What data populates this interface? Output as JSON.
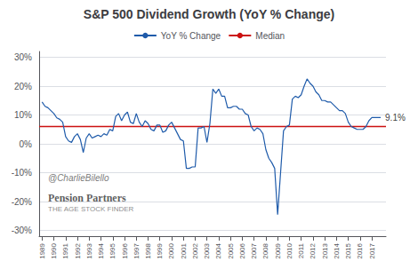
{
  "chart_data": {
    "type": "line",
    "title": "S&P 500 Dividend Growth (YoY % Change)",
    "x": [
      1989.0,
      1989.25,
      1989.5,
      1989.75,
      1990.0,
      1990.25,
      1990.5,
      1990.75,
      1991.0,
      1991.25,
      1991.5,
      1991.75,
      1992.0,
      1992.25,
      1992.5,
      1992.75,
      1993.0,
      1993.25,
      1993.5,
      1993.75,
      1994.0,
      1994.25,
      1994.5,
      1994.75,
      1995.0,
      1995.25,
      1995.5,
      1995.75,
      1996.0,
      1996.25,
      1996.5,
      1996.75,
      1997.0,
      1997.25,
      1997.5,
      1997.75,
      1998.0,
      1998.25,
      1998.5,
      1998.75,
      1999.0,
      1999.25,
      1999.5,
      1999.75,
      2000.0,
      2000.25,
      2000.5,
      2000.75,
      2001.0,
      2001.25,
      2001.5,
      2001.75,
      2002.0,
      2002.25,
      2002.5,
      2002.75,
      2003.0,
      2003.25,
      2003.5,
      2003.75,
      2004.0,
      2004.25,
      2004.5,
      2004.75,
      2005.0,
      2005.25,
      2005.5,
      2005.75,
      2006.0,
      2006.25,
      2006.5,
      2006.75,
      2007.0,
      2007.25,
      2007.5,
      2007.75,
      2008.0,
      2008.25,
      2008.5,
      2008.75,
      2009.0,
      2009.25,
      2009.5,
      2009.75,
      2010.0,
      2010.25,
      2010.5,
      2010.75,
      2011.0,
      2011.25,
      2011.5,
      2011.75,
      2012.0,
      2012.25,
      2012.5,
      2012.75,
      2013.0,
      2013.25,
      2013.5,
      2013.75,
      2014.0,
      2014.25,
      2014.5,
      2014.75,
      2015.0,
      2015.25,
      2015.5,
      2015.75,
      2016.0,
      2016.25,
      2016.5,
      2016.75,
      2017.0,
      2017.25,
      2017.5,
      2017.75
    ],
    "series": [
      {
        "name": "YoY % Change",
        "type": "line",
        "color": "#1f5baa",
        "values": [
          14.5,
          13.0,
          12.5,
          11.5,
          10.5,
          9.0,
          8.5,
          7.5,
          2.5,
          1.0,
          0.5,
          2.5,
          3.5,
          1.5,
          -3.0,
          2.0,
          3.5,
          2.0,
          2.5,
          3.0,
          2.5,
          3.5,
          3.0,
          5.0,
          4.5,
          9.5,
          10.5,
          8.0,
          10.0,
          11.0,
          7.5,
          7.0,
          10.5,
          7.5,
          6.0,
          8.0,
          7.0,
          5.0,
          4.5,
          6.5,
          6.5,
          4.0,
          4.5,
          6.5,
          7.5,
          5.5,
          3.5,
          1.5,
          1.0,
          -8.5,
          -8.5,
          -8.0,
          -8.0,
          5.5,
          5.5,
          6.0,
          0.5,
          7.0,
          19.0,
          17.5,
          19.0,
          16.5,
          16.5,
          12.5,
          12.5,
          13.0,
          13.0,
          12.0,
          12.0,
          10.5,
          10.0,
          6.0,
          4.5,
          5.5,
          5.0,
          3.5,
          -2.0,
          -5.0,
          -6.5,
          -8.5,
          -24.5,
          -10.0,
          4.5,
          6.0,
          6.5,
          15.5,
          16.5,
          16.0,
          17.0,
          20.0,
          22.5,
          21.0,
          20.0,
          18.0,
          17.0,
          15.0,
          15.0,
          14.5,
          14.5,
          13.5,
          12.5,
          11.5,
          11.5,
          10.5,
          7.5,
          6.0,
          5.5,
          5.0,
          5.0,
          5.0,
          6.0,
          8.0,
          9.1,
          9.1,
          9.1,
          9.1
        ]
      },
      {
        "name": "Median",
        "type": "hline",
        "color": "#cc1111",
        "value": 6.0
      }
    ],
    "annotations": [
      {
        "text": "9.1%",
        "x": 2017.75,
        "y": 9.1
      },
      {
        "text": "@CharlieBilello"
      },
      {
        "text": "Pension Partners"
      },
      {
        "text": "THE AGE STOCK FINDER"
      }
    ],
    "xlim": [
      1988.75,
      2018.2
    ],
    "xticks": [
      1989,
      1990,
      1991,
      1992,
      1993,
      1994,
      1995,
      1996,
      1997,
      1998,
      1999,
      2000,
      2001,
      2002,
      2003,
      2004,
      2005,
      2006,
      2007,
      2008,
      2009,
      2010,
      2011,
      2012,
      2013,
      2014,
      2015,
      2016,
      2017
    ],
    "ylim": [
      -32,
      32
    ],
    "yticks": [
      {
        "value": -30,
        "label": "-30%"
      },
      {
        "value": -20,
        "label": "-20%"
      },
      {
        "value": -10,
        "label": "-10%"
      },
      {
        "value": 0,
        "label": "0%"
      },
      {
        "value": 10,
        "label": "10%"
      },
      {
        "value": 20,
        "label": "20%"
      },
      {
        "value": 30,
        "label": "30%"
      }
    ],
    "grid": true,
    "legend": "top"
  }
}
